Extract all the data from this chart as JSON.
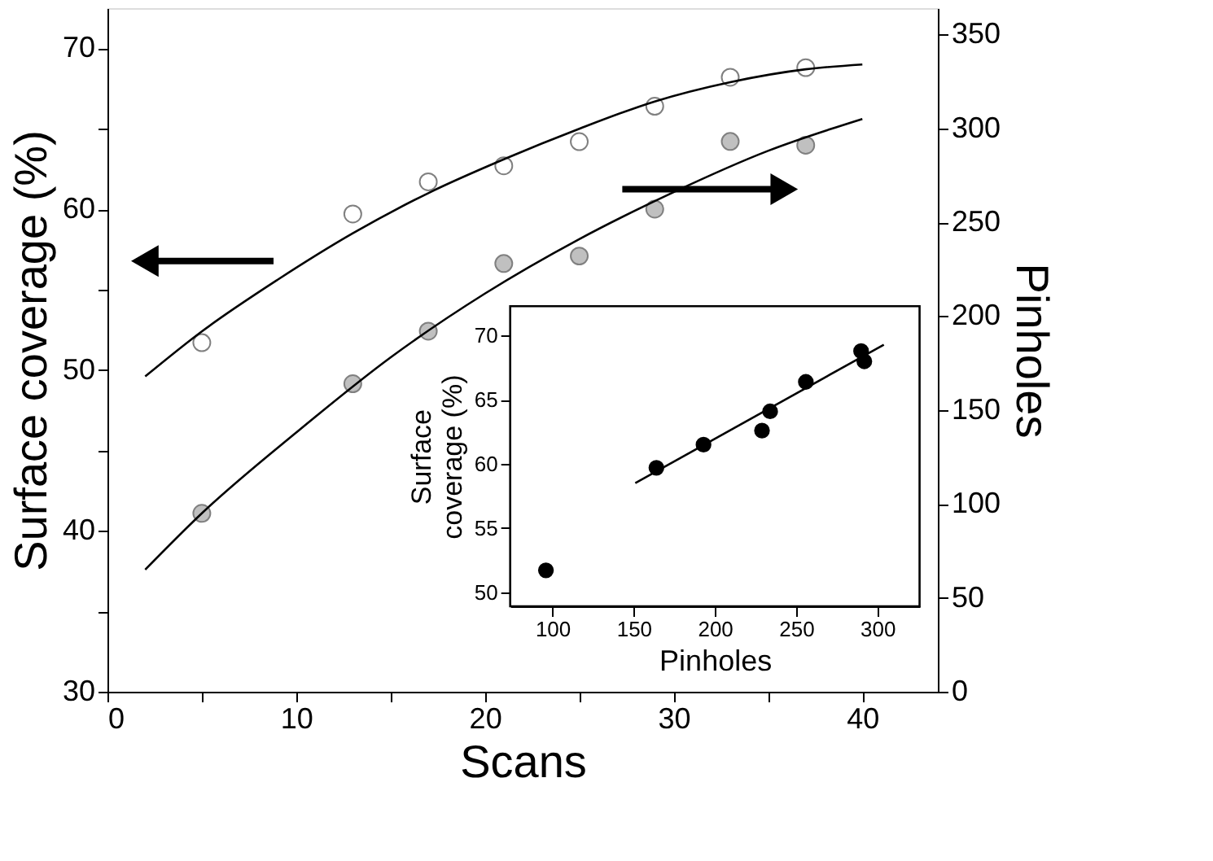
{
  "chart_data": [
    {
      "type": "scatter",
      "xlabel": "Scans",
      "ylabel": "Surface coverage (%)",
      "y2label": "Pinholes",
      "xlim": [
        0,
        44
      ],
      "ylim": [
        30,
        72.5
      ],
      "y2lim": [
        0,
        364
      ],
      "xticks": [
        0,
        {
          "value": 5,
          "label": null
        },
        10,
        {
          "value": 15,
          "label": null
        },
        20,
        {
          "value": 25,
          "label": null
        },
        30,
        {
          "value": 35,
          "label": null
        },
        40
      ],
      "yticks": [
        30,
        {
          "value": 35,
          "label": null
        },
        40,
        {
          "value": 45,
          "label": null
        },
        50,
        {
          "value": 55,
          "label": null
        },
        60,
        {
          "value": 65,
          "label": null
        },
        70
      ],
      "y2ticks": [
        0,
        50,
        100,
        150,
        200,
        250,
        300,
        350
      ],
      "grid": false,
      "series": [
        {
          "type": "scatter",
          "marker": "circle",
          "color": "#ffffff",
          "x": [
            5,
            13,
            17,
            21,
            25,
            29,
            33,
            37
          ],
          "values": [
            51.7,
            59.7,
            61.7,
            62.7,
            64.2,
            66.4,
            68.2,
            68.8
          ]
        },
        {
          "type": "line",
          "color": "#000000",
          "x": [
            2,
            5,
            9,
            13,
            17,
            21,
            25,
            29,
            33,
            37,
            40
          ],
          "values": [
            49.6,
            52.4,
            55.6,
            58.5,
            61.0,
            63.1,
            65.0,
            66.7,
            67.9,
            68.7,
            69.0
          ]
        },
        {
          "type": "scatter",
          "marker": "circle",
          "axis": "y2",
          "color": "#c0c0c0",
          "x": [
            5,
            13,
            17,
            21,
            25,
            29,
            33,
            37
          ],
          "values": [
            95,
            164,
            192,
            228,
            232,
            257,
            293,
            291
          ]
        },
        {
          "type": "line",
          "axis": "y2",
          "color": "#000000",
          "x": [
            2,
            5,
            10,
            15,
            20,
            25,
            30,
            35,
            40
          ],
          "values": [
            65,
            95,
            138,
            178,
            212,
            241,
            266,
            288,
            305
          ]
        }
      ]
    },
    {
      "type": "scatter",
      "xlabel": "Pinholes",
      "ylabel": "Surface coverage (%)",
      "xlim": [
        74,
        326
      ],
      "ylim": [
        48.9,
        72.3
      ],
      "xticks": [
        100,
        150,
        200,
        250,
        300
      ],
      "yticks": [
        50,
        55,
        60,
        65,
        70
      ],
      "grid": false,
      "series": [
        {
          "type": "scatter",
          "marker": "circle",
          "color": "#000000",
          "x": [
            96,
            164,
            193,
            229,
            234,
            256,
            290,
            292
          ],
          "values": [
            51.7,
            59.7,
            61.5,
            62.6,
            64.1,
            66.4,
            68.8,
            68.0
          ]
        },
        {
          "type": "line",
          "color": "#000000",
          "x": [
            151,
            304
          ],
          "values": [
            58.5,
            69.3
          ]
        }
      ]
    }
  ]
}
